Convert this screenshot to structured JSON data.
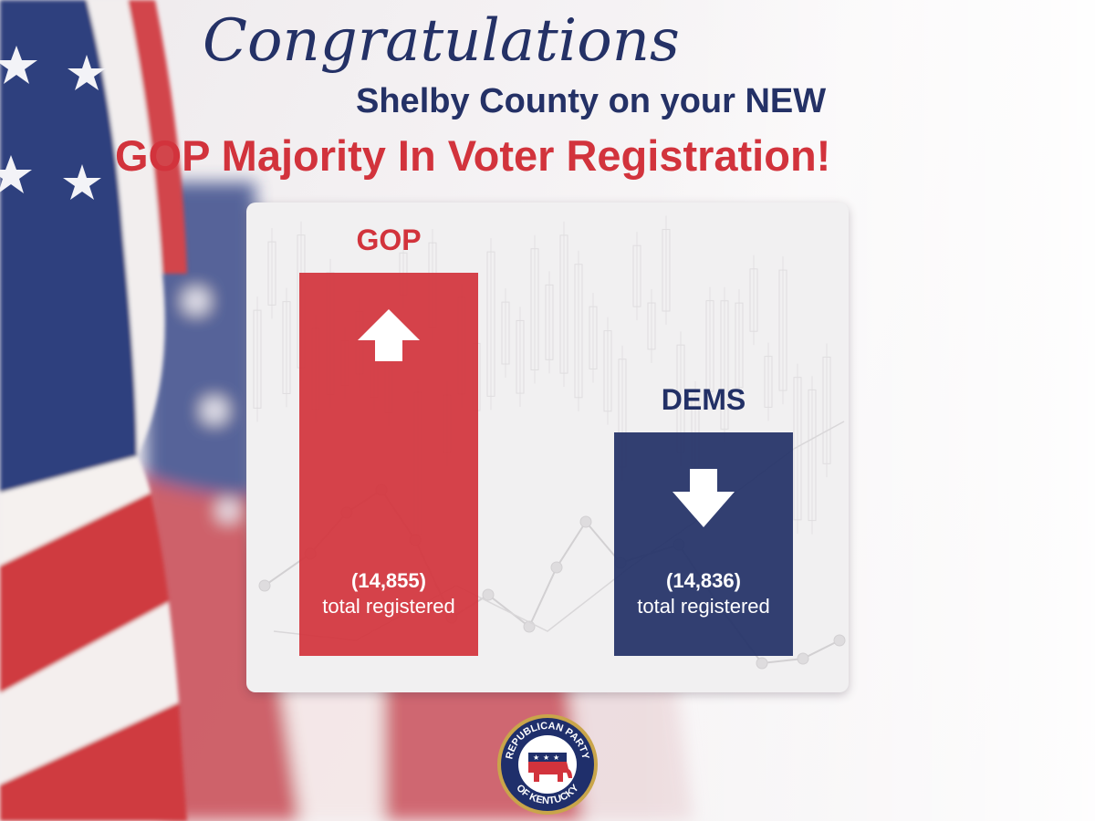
{
  "headline": {
    "script": "Congratulations",
    "line2": "Shelby County on your NEW",
    "line3": "GOP Majority In Voter Registration!"
  },
  "colors": {
    "gop_red": "#d2333c",
    "dems_blue": "#223066",
    "navy_text": "#243166",
    "panel_bg": "#f1f0f1"
  },
  "chart_data": {
    "type": "bar",
    "categories": [
      "GOP",
      "DEMS"
    ],
    "values": [
      14855,
      14836
    ],
    "value_labels": [
      "(14,855)",
      "(14,836)"
    ],
    "value_caption": "total registered",
    "trend": [
      "up",
      "down"
    ],
    "colors": [
      "#d2333c",
      "#223066"
    ]
  },
  "seal": {
    "text_top": "REPUBLICAN PARTY",
    "text_bottom": "OF KENTUCKY",
    "icon": "elephant-icon"
  }
}
